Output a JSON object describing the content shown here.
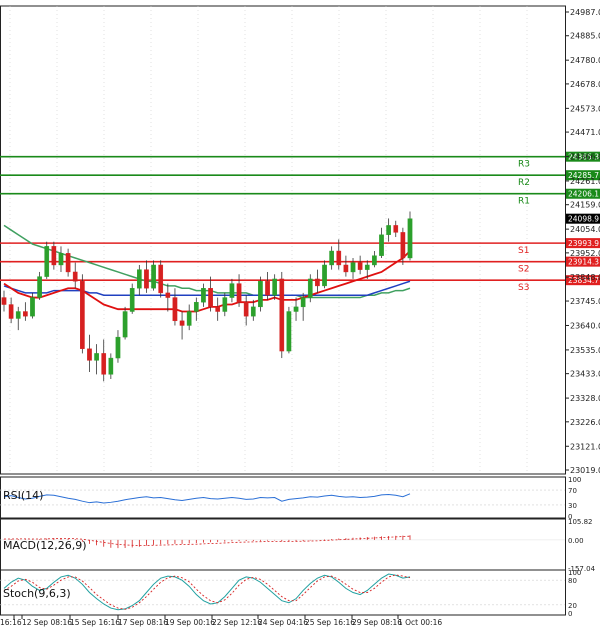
{
  "chart_data": {
    "type": "candlestick",
    "main": {
      "y_ticks": [
        "24987.0",
        "24885.0",
        "24780.0",
        "24678.0",
        "24573.0",
        "24471.0",
        "24366.0",
        "24261.0",
        "24159.0",
        "24054.0",
        "23952.0",
        "23848.0",
        "23745.0",
        "23640.0",
        "23535.0",
        "23433.0",
        "23328.0",
        "23226.0",
        "23121.0",
        "23019.0"
      ],
      "ylim": [
        23019.0,
        24987.0
      ],
      "current_price": {
        "value": 24098.9,
        "label": "24098.9"
      },
      "levels": [
        {
          "name": "R3",
          "value": 24365.3,
          "label": "24365.3",
          "color": "#1a8a1a"
        },
        {
          "name": "R2",
          "value": 24285.7,
          "label": "24285.7",
          "color": "#1a8a1a"
        },
        {
          "name": "R1",
          "value": 24206.1,
          "label": "24206.1",
          "color": "#1a8a1a"
        },
        {
          "name": "S1",
          "value": 23993.9,
          "label": "23993.9",
          "color": "#e02020"
        },
        {
          "name": "S2",
          "value": 23914.3,
          "label": "23914.3",
          "color": "#e02020"
        },
        {
          "name": "S3",
          "value": 23834.7,
          "label": "23834.7",
          "color": "#e02020"
        }
      ],
      "candles": [
        {
          "o": 23760,
          "h": 23790,
          "l": 23700,
          "c": 23730
        },
        {
          "o": 23730,
          "h": 23760,
          "l": 23650,
          "c": 23670
        },
        {
          "o": 23670,
          "h": 23720,
          "l": 23620,
          "c": 23700
        },
        {
          "o": 23700,
          "h": 23740,
          "l": 23660,
          "c": 23680
        },
        {
          "o": 23680,
          "h": 23780,
          "l": 23670,
          "c": 23760
        },
        {
          "o": 23760,
          "h": 23870,
          "l": 23750,
          "c": 23850
        },
        {
          "o": 23850,
          "h": 24000,
          "l": 23840,
          "c": 23980
        },
        {
          "o": 23980,
          "h": 24000,
          "l": 23880,
          "c": 23900
        },
        {
          "o": 23900,
          "h": 23980,
          "l": 23870,
          "c": 23950
        },
        {
          "o": 23950,
          "h": 23970,
          "l": 23850,
          "c": 23870
        },
        {
          "o": 23870,
          "h": 23910,
          "l": 23800,
          "c": 23830
        },
        {
          "o": 23830,
          "h": 23860,
          "l": 23520,
          "c": 23540
        },
        {
          "o": 23540,
          "h": 23600,
          "l": 23440,
          "c": 23490
        },
        {
          "o": 23490,
          "h": 23560,
          "l": 23430,
          "c": 23520
        },
        {
          "o": 23520,
          "h": 23580,
          "l": 23400,
          "c": 23430
        },
        {
          "o": 23430,
          "h": 23520,
          "l": 23410,
          "c": 23500
        },
        {
          "o": 23500,
          "h": 23620,
          "l": 23480,
          "c": 23590
        },
        {
          "o": 23590,
          "h": 23720,
          "l": 23580,
          "c": 23700
        },
        {
          "o": 23700,
          "h": 23820,
          "l": 23690,
          "c": 23800
        },
        {
          "o": 23800,
          "h": 23900,
          "l": 23770,
          "c": 23880
        },
        {
          "o": 23880,
          "h": 23920,
          "l": 23780,
          "c": 23800
        },
        {
          "o": 23800,
          "h": 23920,
          "l": 23790,
          "c": 23900
        },
        {
          "o": 23900,
          "h": 23920,
          "l": 23760,
          "c": 23780
        },
        {
          "o": 23780,
          "h": 23820,
          "l": 23700,
          "c": 23760
        },
        {
          "o": 23760,
          "h": 23800,
          "l": 23640,
          "c": 23660
        },
        {
          "o": 23660,
          "h": 23700,
          "l": 23580,
          "c": 23640
        },
        {
          "o": 23640,
          "h": 23730,
          "l": 23620,
          "c": 23700
        },
        {
          "o": 23700,
          "h": 23760,
          "l": 23660,
          "c": 23740
        },
        {
          "o": 23740,
          "h": 23820,
          "l": 23720,
          "c": 23800
        },
        {
          "o": 23800,
          "h": 23850,
          "l": 23700,
          "c": 23720
        },
        {
          "o": 23720,
          "h": 23760,
          "l": 23660,
          "c": 23700
        },
        {
          "o": 23700,
          "h": 23780,
          "l": 23680,
          "c": 23760
        },
        {
          "o": 23760,
          "h": 23840,
          "l": 23740,
          "c": 23820
        },
        {
          "o": 23820,
          "h": 23860,
          "l": 23720,
          "c": 23740
        },
        {
          "o": 23740,
          "h": 23770,
          "l": 23640,
          "c": 23680
        },
        {
          "o": 23680,
          "h": 23750,
          "l": 23660,
          "c": 23720
        },
        {
          "o": 23720,
          "h": 23850,
          "l": 23700,
          "c": 23830
        },
        {
          "o": 23830,
          "h": 23870,
          "l": 23750,
          "c": 23770
        },
        {
          "o": 23770,
          "h": 23860,
          "l": 23750,
          "c": 23840
        },
        {
          "o": 23840,
          "h": 23870,
          "l": 23500,
          "c": 23530
        },
        {
          "o": 23530,
          "h": 23720,
          "l": 23520,
          "c": 23700
        },
        {
          "o": 23700,
          "h": 23760,
          "l": 23660,
          "c": 23720
        },
        {
          "o": 23720,
          "h": 23780,
          "l": 23660,
          "c": 23760
        },
        {
          "o": 23760,
          "h": 23860,
          "l": 23740,
          "c": 23840
        },
        {
          "o": 23840,
          "h": 23880,
          "l": 23780,
          "c": 23810
        },
        {
          "o": 23810,
          "h": 23920,
          "l": 23800,
          "c": 23900
        },
        {
          "o": 23900,
          "h": 23980,
          "l": 23880,
          "c": 23960
        },
        {
          "o": 23960,
          "h": 24010,
          "l": 23880,
          "c": 23900
        },
        {
          "o": 23900,
          "h": 23940,
          "l": 23850,
          "c": 23870
        },
        {
          "o": 23870,
          "h": 23930,
          "l": 23840,
          "c": 23910
        },
        {
          "o": 23910,
          "h": 23940,
          "l": 23860,
          "c": 23880
        },
        {
          "o": 23880,
          "h": 23920,
          "l": 23840,
          "c": 23900
        },
        {
          "o": 23900,
          "h": 23960,
          "l": 23890,
          "c": 23940
        },
        {
          "o": 23940,
          "h": 24060,
          "l": 23930,
          "c": 24030
        },
        {
          "o": 24030,
          "h": 24100,
          "l": 24000,
          "c": 24070
        },
        {
          "o": 24070,
          "h": 24090,
          "l": 24020,
          "c": 24040
        },
        {
          "o": 24040,
          "h": 24060,
          "l": 23900,
          "c": 23930
        },
        {
          "o": 23930,
          "h": 24130,
          "l": 23920,
          "c": 24099
        }
      ],
      "ma_red": [
        23820,
        23800,
        23780,
        23770,
        23760,
        23760,
        23770,
        23780,
        23790,
        23800,
        23800,
        23790,
        23770,
        23750,
        23730,
        23720,
        23710,
        23710,
        23710,
        23710,
        23710,
        23710,
        23710,
        23710,
        23710,
        23700,
        23700,
        23700,
        23710,
        23720,
        23720,
        23730,
        23730,
        23740,
        23740,
        23740,
        23750,
        23750,
        23760,
        23750,
        23750,
        23750,
        23760,
        23770,
        23780,
        23790,
        23800,
        23810,
        23820,
        23830,
        23840,
        23850,
        23860,
        23870,
        23890,
        23910,
        23930,
        23960
      ],
      "ma_blue": [
        23810,
        23800,
        23790,
        23780,
        23780,
        23780,
        23780,
        23790,
        23790,
        23790,
        23790,
        23790,
        23780,
        23780,
        23770,
        23770,
        23770,
        23770,
        23770,
        23770,
        23770,
        23770,
        23770,
        23770,
        23770,
        23770,
        23770,
        23770,
        23770,
        23770,
        23770,
        23770,
        23770,
        23770,
        23770,
        23770,
        23770,
        23770,
        23770,
        23770,
        23770,
        23770,
        23770,
        23770,
        23770,
        23770,
        23770,
        23770,
        23770,
        23770,
        23770,
        23770,
        23780,
        23790,
        23800,
        23810,
        23820,
        23830
      ],
      "ma_green": [
        24070,
        24050,
        24030,
        24010,
        23990,
        23980,
        23970,
        23960,
        23950,
        23940,
        23930,
        23920,
        23910,
        23900,
        23890,
        23880,
        23870,
        23860,
        23850,
        23840,
        23830,
        23830,
        23820,
        23810,
        23810,
        23800,
        23800,
        23790,
        23790,
        23790,
        23780,
        23780,
        23780,
        23780,
        23780,
        23770,
        23770,
        23770,
        23770,
        23770,
        23770,
        23770,
        23760,
        23760,
        23760,
        23760,
        23760,
        23760,
        23760,
        23760,
        23760,
        23770,
        23770,
        23780,
        23780,
        23790,
        23790,
        23800
      ]
    },
    "rsi": {
      "label": "RSI(14)",
      "y_ticks": [
        "100",
        "70",
        "30",
        "0"
      ],
      "ylim": [
        0,
        100
      ],
      "values": [
        52,
        55,
        50,
        46,
        48,
        53,
        57,
        56,
        52,
        48,
        45,
        40,
        36,
        38,
        35,
        37,
        40,
        44,
        47,
        50,
        52,
        49,
        50,
        47,
        44,
        42,
        45,
        48,
        50,
        47,
        46,
        48,
        50,
        48,
        45,
        46,
        50,
        49,
        50,
        40,
        45,
        47,
        49,
        52,
        51,
        54,
        56,
        53,
        51,
        52,
        50,
        51,
        53,
        57,
        58,
        56,
        52,
        60
      ]
    },
    "macd": {
      "label": "MACD(12,26,9)",
      "y_ticks": [
        "105.82",
        "0.00",
        "-157.04"
      ],
      "ylim": [
        -157.04,
        105.82
      ],
      "histogram": [
        2,
        5,
        5,
        3,
        2,
        4,
        8,
        10,
        9,
        7,
        5,
        -10,
        -22,
        -30,
        -38,
        -44,
        -46,
        -45,
        -42,
        -38,
        -32,
        -28,
        -25,
        -23,
        -22,
        -22,
        -20,
        -18,
        -15,
        -13,
        -12,
        -10,
        -8,
        -7,
        -6,
        -6,
        -5,
        -4,
        -3,
        -8,
        -9,
        -8,
        -6,
        -3,
        0,
        3,
        5,
        8,
        10,
        12,
        14,
        16,
        18,
        20,
        22,
        23,
        24,
        26
      ],
      "signal": [
        5,
        5,
        6,
        6,
        5,
        5,
        6,
        7,
        8,
        8,
        7,
        4,
        -2,
        -8,
        -14,
        -20,
        -25,
        -28,
        -30,
        -31,
        -31,
        -30,
        -29,
        -28,
        -27,
        -26,
        -25,
        -24,
        -22,
        -20,
        -19,
        -17,
        -15,
        -13,
        -12,
        -11,
        -10,
        -9,
        -8,
        -8,
        -8,
        -8,
        -7,
        -6,
        -5,
        -3,
        -1,
        1,
        3,
        5,
        7,
        9,
        11,
        13,
        15,
        17,
        19,
        21
      ]
    },
    "stoch": {
      "label": "Stoch(9,6,3)",
      "y_ticks": [
        "100",
        "80",
        "20",
        "0"
      ],
      "ylim": [
        0,
        100
      ],
      "k": [
        60,
        75,
        85,
        80,
        65,
        55,
        60,
        75,
        88,
        92,
        85,
        70,
        50,
        35,
        22,
        12,
        8,
        10,
        18,
        30,
        50,
        70,
        85,
        90,
        88,
        80,
        65,
        45,
        30,
        22,
        25,
        40,
        60,
        80,
        88,
        85,
        75,
        60,
        45,
        30,
        25,
        35,
        55,
        72,
        85,
        92,
        88,
        75,
        60,
        50,
        45,
        55,
        70,
        85,
        95,
        92,
        85,
        88
      ],
      "d": [
        55,
        65,
        78,
        82,
        75,
        62,
        58,
        68,
        80,
        88,
        88,
        78,
        62,
        45,
        32,
        20,
        12,
        9,
        14,
        25,
        40,
        58,
        75,
        86,
        90,
        86,
        76,
        58,
        42,
        30,
        25,
        32,
        48,
        68,
        82,
        87,
        82,
        70,
        55,
        40,
        30,
        30,
        45,
        62,
        78,
        88,
        90,
        82,
        70,
        58,
        50,
        50,
        60,
        75,
        88,
        93,
        90,
        86
      ]
    },
    "x_ticks": [
      "16:16",
      "12 Sep 08:16",
      "15 Sep 16:16",
      "17 Sep 08:16",
      "19 Sep 00:16",
      "22 Sep 12:16",
      "24 Sep 04:16",
      "25 Sep 16:16",
      "29 Sep 08:16",
      "1 Oct 00:16"
    ],
    "colors": {
      "bull": "#2ca02c",
      "bear": "#d62020",
      "ma_red": "#e01010",
      "ma_blue": "#2040c0",
      "ma_green": "#40a060",
      "rsi_line": "#2a6fd6",
      "macd_hist": "#d62020",
      "macd_signal": "#d62020",
      "stoch_k": "#20a0a0",
      "stoch_d": "#d62020",
      "price_box": "#000000"
    }
  }
}
